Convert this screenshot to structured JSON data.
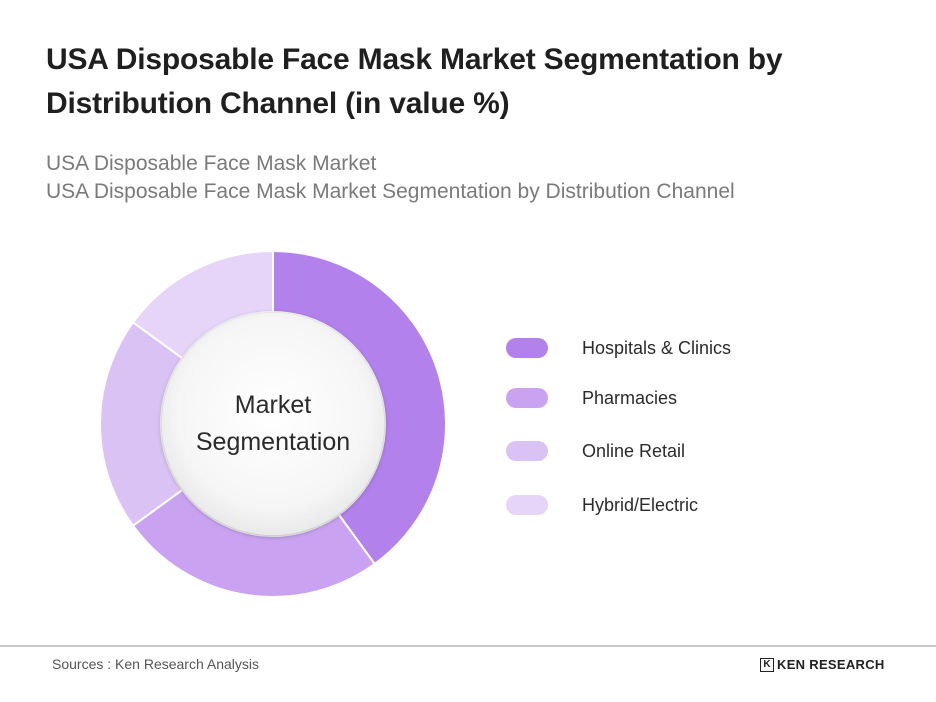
{
  "title": "USA Disposable Face Mask Market Segmentation by Distribution Channel (in value %)",
  "subtitle_lines": [
    "USA Disposable Face Mask Market",
    "USA Disposable Face Mask Market Segmentation by Distribution Channel"
  ],
  "center_label": [
    "Market",
    "Segmentation"
  ],
  "colors": {
    "hospitals_clinics": "#b381eb",
    "pharmacies": "#c9a3f1",
    "online_retail": "#dbc2f5",
    "hybrid_electric": "#e7d4f9",
    "title": "#1f1f1f",
    "subtitle": "#7a7a7a"
  },
  "chart_data": {
    "type": "pie",
    "style": "donut",
    "title": "USA Disposable Face Mask Market Segmentation by Distribution Channel (in value %)",
    "categories": [
      "Hospitals & Clinics",
      "Pharmacies",
      "Online Retail",
      "Hybrid/Electric"
    ],
    "values": [
      40,
      25,
      20,
      15
    ],
    "colors": [
      "#b381eb",
      "#c9a3f1",
      "#dbc2f5",
      "#e7d4f9"
    ],
    "legend_position": "right"
  },
  "footer": {
    "source": "Sources : Ken Research Analysis",
    "brand_mark": "K",
    "brand_name": "KEN RESEARCH"
  }
}
